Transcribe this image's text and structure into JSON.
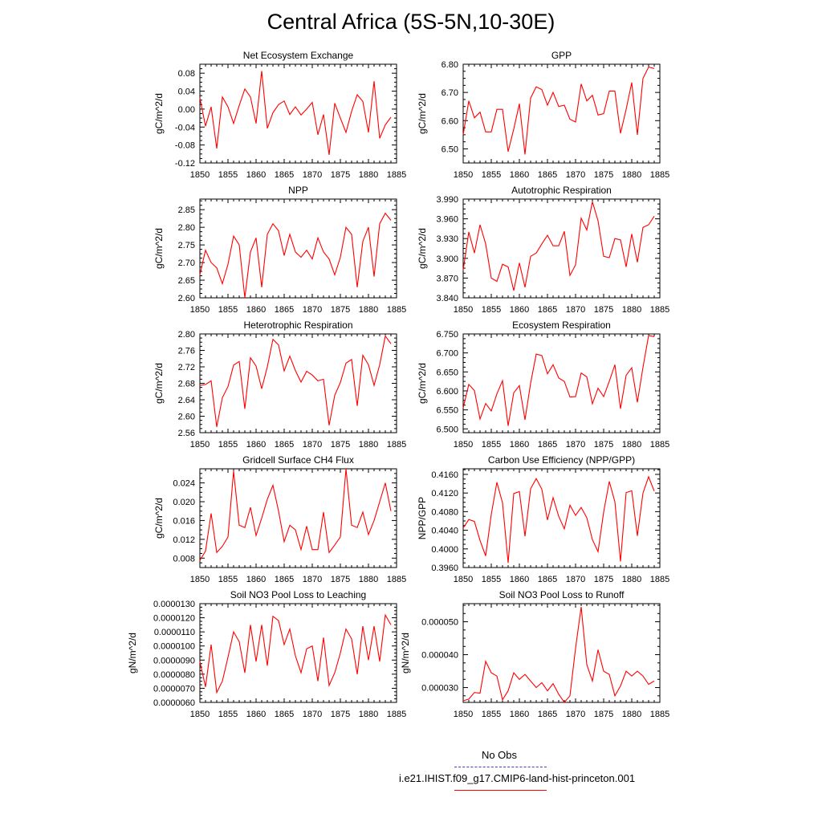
{
  "page": {
    "title": "Central Africa (5S-5N,10-30E)"
  },
  "legend": {
    "obs_label": "No Obs",
    "obs_color": "#3b3bcc",
    "model_label": "i.e21.IHIST.f09_g17.CMIP6-land-hist-princeton.001",
    "model_color": "#ff0000"
  },
  "series_color": "#ff0000",
  "chart_data": [
    {
      "type": "line",
      "title": "Net Ecosystem Exchange",
      "ylabel": "gC/m^2/d",
      "ylim": [
        -0.12,
        0.1
      ],
      "yticks": [
        -0.12,
        -0.08,
        -0.04,
        0.0,
        0.04,
        0.08
      ],
      "ytick_labels": [
        "-0.12",
        "-0.08",
        "-0.04",
        "0.00",
        "0.04",
        "0.08"
      ],
      "xlim": [
        1850,
        1885
      ],
      "xticks": [
        1850,
        1855,
        1860,
        1865,
        1870,
        1875,
        1880,
        1885
      ],
      "x": [
        1850,
        1851,
        1852,
        1853,
        1854,
        1855,
        1856,
        1857,
        1858,
        1859,
        1860,
        1861,
        1862,
        1863,
        1864,
        1865,
        1866,
        1867,
        1868,
        1869,
        1870,
        1871,
        1872,
        1873,
        1874,
        1875,
        1876,
        1877,
        1878,
        1879,
        1880,
        1881,
        1882,
        1883,
        1884
      ],
      "values": [
        0.025,
        -0.038,
        0.005,
        -0.088,
        0.027,
        0.005,
        -0.032,
        0.008,
        0.045,
        0.027,
        -0.032,
        0.085,
        -0.043,
        -0.008,
        0.01,
        0.018,
        -0.012,
        0.005,
        -0.013,
        0.0,
        0.015,
        -0.057,
        -0.012,
        -0.102,
        0.013,
        -0.02,
        -0.052,
        -0.005,
        0.032,
        0.017,
        -0.052,
        0.062,
        -0.065,
        -0.035,
        -0.018
      ]
    },
    {
      "type": "line",
      "title": "GPP",
      "ylabel": "gC/m^2/d",
      "ylim": [
        6.45,
        6.8
      ],
      "yticks": [
        6.5,
        6.6,
        6.7,
        6.8
      ],
      "ytick_labels": [
        "6.50",
        "6.60",
        "6.70",
        "6.80"
      ],
      "xlim": [
        1850,
        1885
      ],
      "xticks": [
        1850,
        1855,
        1860,
        1865,
        1870,
        1875,
        1880,
        1885
      ],
      "x": [
        1850,
        1851,
        1852,
        1853,
        1854,
        1855,
        1856,
        1857,
        1858,
        1859,
        1860,
        1861,
        1862,
        1863,
        1864,
        1865,
        1866,
        1867,
        1868,
        1869,
        1870,
        1871,
        1872,
        1873,
        1874,
        1875,
        1876,
        1877,
        1878,
        1879,
        1880,
        1881,
        1882,
        1883,
        1884
      ],
      "values": [
        6.55,
        6.67,
        6.61,
        6.63,
        6.56,
        6.56,
        6.64,
        6.64,
        6.49,
        6.57,
        6.66,
        6.48,
        6.68,
        6.72,
        6.71,
        6.655,
        6.7,
        6.65,
        6.655,
        6.605,
        6.595,
        6.73,
        6.67,
        6.69,
        6.62,
        6.625,
        6.705,
        6.705,
        6.555,
        6.64,
        6.735,
        6.55,
        6.75,
        6.79,
        6.785
      ]
    },
    {
      "type": "line",
      "title": "NPP",
      "ylabel": "gC/m^2/d",
      "ylim": [
        2.6,
        2.88
      ],
      "yticks": [
        2.6,
        2.65,
        2.7,
        2.75,
        2.8,
        2.85
      ],
      "ytick_labels": [
        "2.60",
        "2.65",
        "2.70",
        "2.75",
        "2.80",
        "2.85"
      ],
      "xlim": [
        1850,
        1885
      ],
      "xticks": [
        1850,
        1855,
        1860,
        1865,
        1870,
        1875,
        1880,
        1885
      ],
      "x": [
        1850,
        1851,
        1852,
        1853,
        1854,
        1855,
        1856,
        1857,
        1858,
        1859,
        1860,
        1861,
        1862,
        1863,
        1864,
        1865,
        1866,
        1867,
        1868,
        1869,
        1870,
        1871,
        1872,
        1873,
        1874,
        1875,
        1876,
        1877,
        1878,
        1879,
        1880,
        1881,
        1882,
        1883,
        1884
      ],
      "values": [
        2.665,
        2.735,
        2.7,
        2.685,
        2.64,
        2.695,
        2.775,
        2.75,
        2.6,
        2.73,
        2.77,
        2.63,
        2.78,
        2.81,
        2.79,
        2.72,
        2.78,
        2.73,
        2.715,
        2.735,
        2.71,
        2.77,
        2.73,
        2.71,
        2.665,
        2.715,
        2.8,
        2.78,
        2.63,
        2.76,
        2.8,
        2.66,
        2.81,
        2.84,
        2.82
      ]
    },
    {
      "type": "line",
      "title": "Autotrophic Respiration",
      "ylabel": "gC/m^2/d",
      "ylim": [
        3.84,
        3.99
      ],
      "yticks": [
        3.84,
        3.87,
        3.9,
        3.93,
        3.96,
        3.99
      ],
      "ytick_labels": [
        "3.840",
        "3.870",
        "3.900",
        "3.930",
        "3.960",
        "3.990"
      ],
      "xlim": [
        1850,
        1885
      ],
      "xticks": [
        1850,
        1855,
        1860,
        1865,
        1870,
        1875,
        1880,
        1885
      ],
      "x": [
        1850,
        1851,
        1852,
        1853,
        1854,
        1855,
        1856,
        1857,
        1858,
        1859,
        1860,
        1861,
        1862,
        1863,
        1864,
        1865,
        1866,
        1867,
        1868,
        1869,
        1870,
        1871,
        1872,
        1873,
        1874,
        1875,
        1876,
        1877,
        1878,
        1879,
        1880,
        1881,
        1882,
        1883,
        1884
      ],
      "values": [
        3.882,
        3.94,
        3.908,
        3.951,
        3.922,
        3.87,
        3.865,
        3.891,
        3.887,
        3.851,
        3.893,
        3.856,
        3.903,
        3.908,
        3.922,
        3.935,
        3.919,
        3.919,
        3.941,
        3.874,
        3.89,
        3.961,
        3.943,
        3.986,
        3.957,
        3.903,
        3.901,
        3.93,
        3.928,
        3.887,
        3.937,
        3.894,
        3.947,
        3.951,
        3.964
      ]
    },
    {
      "type": "line",
      "title": "Heterotrophic Respiration",
      "ylabel": "gC/m^2/d",
      "ylim": [
        2.56,
        2.8
      ],
      "yticks": [
        2.56,
        2.6,
        2.64,
        2.68,
        2.72,
        2.76,
        2.8
      ],
      "ytick_labels": [
        "2.56",
        "2.60",
        "2.64",
        "2.68",
        "2.72",
        "2.76",
        "2.80"
      ],
      "xlim": [
        1850,
        1885
      ],
      "xticks": [
        1850,
        1855,
        1860,
        1865,
        1870,
        1875,
        1880,
        1885
      ],
      "x": [
        1850,
        1851,
        1852,
        1853,
        1854,
        1855,
        1856,
        1857,
        1858,
        1859,
        1860,
        1861,
        1862,
        1863,
        1864,
        1865,
        1866,
        1867,
        1868,
        1869,
        1870,
        1871,
        1872,
        1873,
        1874,
        1875,
        1876,
        1877,
        1878,
        1879,
        1880,
        1881,
        1882,
        1883,
        1884
      ],
      "values": [
        2.675,
        2.677,
        2.686,
        2.574,
        2.645,
        2.672,
        2.724,
        2.733,
        2.618,
        2.742,
        2.722,
        2.667,
        2.72,
        2.787,
        2.773,
        2.71,
        2.746,
        2.711,
        2.683,
        2.709,
        2.7,
        2.686,
        2.69,
        2.578,
        2.651,
        2.682,
        2.729,
        2.738,
        2.625,
        2.748,
        2.725,
        2.675,
        2.725,
        2.795,
        2.776
      ]
    },
    {
      "type": "line",
      "title": "Ecosystem Respiration",
      "ylabel": "gC/m^2/d",
      "ylim": [
        6.49,
        6.75
      ],
      "yticks": [
        6.5,
        6.55,
        6.6,
        6.65,
        6.7,
        6.75
      ],
      "ytick_labels": [
        "6.500",
        "6.550",
        "6.600",
        "6.650",
        "6.700",
        "6.750"
      ],
      "xlim": [
        1850,
        1885
      ],
      "xticks": [
        1850,
        1855,
        1860,
        1865,
        1870,
        1875,
        1880,
        1885
      ],
      "x": [
        1850,
        1851,
        1852,
        1853,
        1854,
        1855,
        1856,
        1857,
        1858,
        1859,
        1860,
        1861,
        1862,
        1863,
        1864,
        1865,
        1866,
        1867,
        1868,
        1869,
        1870,
        1871,
        1872,
        1873,
        1874,
        1875,
        1876,
        1877,
        1878,
        1879,
        1880,
        1881,
        1882,
        1883,
        1884
      ],
      "values": [
        6.555,
        6.617,
        6.601,
        6.526,
        6.567,
        6.547,
        6.592,
        6.627,
        6.508,
        6.595,
        6.614,
        6.524,
        6.62,
        6.697,
        6.693,
        6.645,
        6.669,
        6.634,
        6.625,
        6.584,
        6.585,
        6.647,
        6.637,
        6.566,
        6.607,
        6.585,
        6.625,
        6.669,
        6.553,
        6.641,
        6.661,
        6.57,
        6.662,
        6.746,
        6.743
      ]
    },
    {
      "type": "line",
      "title": "Gridcell Surface CH4 Flux",
      "ylabel": "gC/m^2/d",
      "ylim": [
        0.006,
        0.027
      ],
      "yticks": [
        0.008,
        0.012,
        0.016,
        0.02,
        0.024
      ],
      "ytick_labels": [
        "0.008",
        "0.012",
        "0.016",
        "0.020",
        "0.024"
      ],
      "xlim": [
        1850,
        1885
      ],
      "xticks": [
        1850,
        1855,
        1860,
        1865,
        1870,
        1875,
        1880,
        1885
      ],
      "x": [
        1850,
        1851,
        1852,
        1853,
        1854,
        1855,
        1856,
        1857,
        1858,
        1859,
        1860,
        1861,
        1862,
        1863,
        1864,
        1865,
        1866,
        1867,
        1868,
        1869,
        1870,
        1871,
        1872,
        1873,
        1874,
        1875,
        1876,
        1877,
        1878,
        1879,
        1880,
        1881,
        1882,
        1883,
        1884
      ],
      "values": [
        0.0075,
        0.0095,
        0.0175,
        0.0092,
        0.0105,
        0.0125,
        0.0265,
        0.015,
        0.0145,
        0.0188,
        0.0128,
        0.0165,
        0.0205,
        0.0235,
        0.018,
        0.0115,
        0.015,
        0.014,
        0.0098,
        0.0148,
        0.0098,
        0.0098,
        0.0178,
        0.0092,
        0.0108,
        0.0125,
        0.027,
        0.015,
        0.0145,
        0.0178,
        0.013,
        0.016,
        0.02,
        0.024,
        0.018
      ]
    },
    {
      "type": "line",
      "title": "Carbon Use Efficiency (NPP/GPP)",
      "ylabel": "NPP/GPP",
      "ylim": [
        0.396,
        0.4172
      ],
      "yticks": [
        0.396,
        0.4,
        0.404,
        0.408,
        0.412,
        0.416
      ],
      "ytick_labels": [
        "0.3960",
        "0.4000",
        "0.4040",
        "0.4080",
        "0.4120",
        "0.4160"
      ],
      "xlim": [
        1850,
        1885
      ],
      "xticks": [
        1850,
        1855,
        1860,
        1865,
        1870,
        1875,
        1880,
        1885
      ],
      "x": [
        1850,
        1851,
        1852,
        1853,
        1854,
        1855,
        1856,
        1857,
        1858,
        1859,
        1860,
        1861,
        1862,
        1863,
        1864,
        1865,
        1866,
        1867,
        1868,
        1869,
        1870,
        1871,
        1872,
        1873,
        1874,
        1875,
        1876,
        1877,
        1878,
        1879,
        1880,
        1881,
        1882,
        1883,
        1884
      ],
      "values": [
        0.4045,
        0.4063,
        0.4059,
        0.4018,
        0.3985,
        0.4074,
        0.4143,
        0.4099,
        0.397,
        0.4119,
        0.4123,
        0.4027,
        0.4129,
        0.4151,
        0.4128,
        0.4062,
        0.411,
        0.407,
        0.4043,
        0.4094,
        0.4072,
        0.4089,
        0.4067,
        0.402,
        0.3994,
        0.4079,
        0.4145,
        0.4101,
        0.3973,
        0.4121,
        0.4125,
        0.4028,
        0.412,
        0.4155,
        0.4124
      ]
    },
    {
      "type": "line",
      "title": "Soil NO3 Pool Loss to Leaching",
      "ylabel": "gN/m^2/d",
      "ylim": [
        6e-06,
        1.3e-05
      ],
      "yticks": [
        6e-06,
        7e-06,
        8e-06,
        9e-06,
        1e-05,
        1.1e-05,
        1.2e-05,
        1.3e-05
      ],
      "ytick_labels": [
        "0.0000060",
        "0.0000070",
        "0.0000080",
        "0.0000090",
        "0.0000100",
        "0.0000110",
        "0.0000120",
        "0.0000130"
      ],
      "xlim": [
        1850,
        1885
      ],
      "xticks": [
        1850,
        1855,
        1860,
        1865,
        1870,
        1875,
        1880,
        1885
      ],
      "x": [
        1850,
        1851,
        1852,
        1853,
        1854,
        1855,
        1856,
        1857,
        1858,
        1859,
        1860,
        1861,
        1862,
        1863,
        1864,
        1865,
        1866,
        1867,
        1868,
        1869,
        1870,
        1871,
        1872,
        1873,
        1874,
        1875,
        1876,
        1877,
        1878,
        1879,
        1880,
        1881,
        1882,
        1883,
        1884
      ],
      "values": [
        8.9e-06,
        7.1e-06,
        1.01e-05,
        6.7e-06,
        7.5e-06,
        9.2e-06,
        1.1e-05,
        1.03e-05,
        8.1e-06,
        1.15e-05,
        8.9e-06,
        1.15e-05,
        8.6e-06,
        1.21e-05,
        1.18e-05,
        1.01e-05,
        1.12e-05,
        9.3e-06,
        8.1e-06,
        9.8e-06,
        1e-05,
        7.5e-06,
        1.06e-05,
        7.2e-06,
        8.1e-06,
        9.5e-06,
        1.12e-05,
        1.05e-05,
        8e-06,
        1.14e-05,
        9e-06,
        1.14e-05,
        8.9e-06,
        1.22e-05,
        1.15e-05
      ]
    },
    {
      "type": "line",
      "title": "Soil NO3 Pool Loss to Runoff",
      "ylabel": "gN/m^2/d",
      "ylim": [
        2.55e-05,
        5.55e-05
      ],
      "yticks": [
        3e-05,
        4e-05,
        5e-05
      ],
      "ytick_labels": [
        "0.000030",
        "0.000040",
        "0.000050"
      ],
      "xlim": [
        1850,
        1885
      ],
      "xticks": [
        1850,
        1855,
        1860,
        1865,
        1870,
        1875,
        1880,
        1885
      ],
      "x": [
        1850,
        1851,
        1852,
        1853,
        1854,
        1855,
        1856,
        1857,
        1858,
        1859,
        1860,
        1861,
        1862,
        1863,
        1864,
        1865,
        1866,
        1867,
        1868,
        1869,
        1870,
        1871,
        1872,
        1873,
        1874,
        1875,
        1876,
        1877,
        1878,
        1879,
        1880,
        1881,
        1882,
        1883,
        1884
      ],
      "values": [
        2.6e-05,
        2.65e-05,
        2.85e-05,
        2.83e-05,
        3.8e-05,
        3.45e-05,
        3.35e-05,
        2.63e-05,
        2.9e-05,
        3.45e-05,
        3.25e-05,
        3.4e-05,
        3.2e-05,
        3e-05,
        3.15e-05,
        2.9e-05,
        3.12e-05,
        2.8e-05,
        2.55e-05,
        2.75e-05,
        4.2e-05,
        5.45e-05,
        3.7e-05,
        3.2e-05,
        4.15e-05,
        3.5e-05,
        3.4e-05,
        2.75e-05,
        3.05e-05,
        3.5e-05,
        3.35e-05,
        3.5e-05,
        3.35e-05,
        3.1e-05,
        3.2e-05
      ]
    }
  ]
}
